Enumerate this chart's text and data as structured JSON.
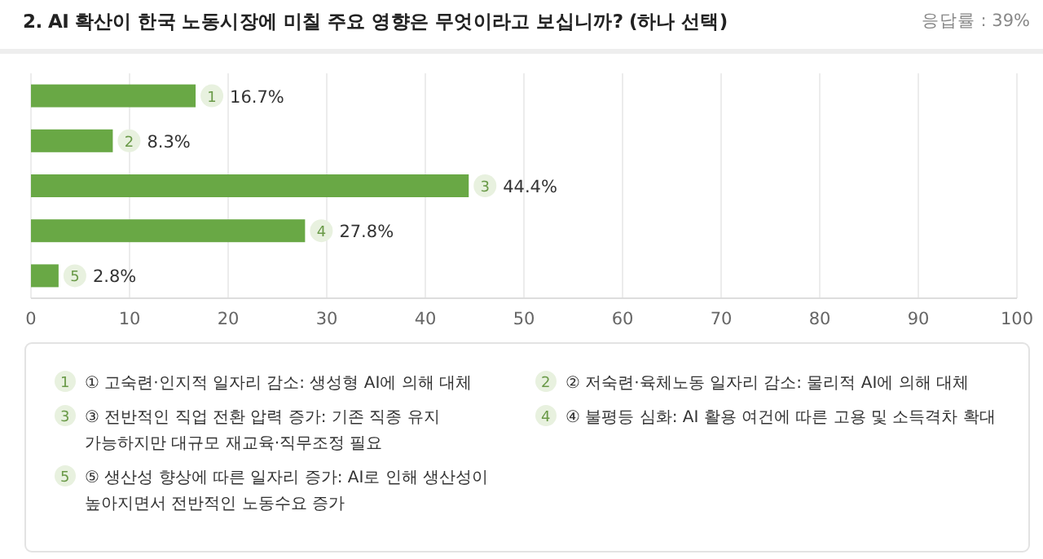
{
  "chart_data": {
    "type": "bar",
    "orientation": "horizontal",
    "title": "2. AI 확산이 한국 노동시장에 미칠 주요 영향은 무엇이라고 보십니까? (하나 선택)",
    "subtitle": "응답률 : 39%",
    "categories": [
      null,
      null,
      null,
      null,
      null
    ],
    "values": [
      16.7,
      8.3,
      44.4,
      27.8,
      2.8
    ],
    "value_labels": [
      "16.7%",
      "8.3%",
      "44.4%",
      "27.8%",
      "2.8%"
    ],
    "color": "#69a845",
    "xlim": [
      0,
      100
    ],
    "xticks": [
      0,
      10,
      20,
      30,
      40,
      50,
      60,
      70,
      80,
      90,
      100
    ],
    "grid": "x",
    "annotations": [
      "1 ① 고숙련·인지적 일자리 감소: 생성형 AI에 의해 대체",
      "2 ② 저숙련·육체노동 일자리 감소: 물리적 AI에 의해 대체",
      "3 ③ 전반적인 직업 전환 압력 증가: 기존 직종 유지 가능하지만 대규모 재교육·직무조정 필요",
      "4 ④ 불평등 심화: AI 활용 여건에 따른 고용 및 소득격차 확대",
      "5 ⑤ 생산성 향상에 따른 일자리 증가: AI로 인해 생산성이 높아지면서 전반적인 노동수요 증가",
      "1",
      "2",
      "3",
      "4",
      "5"
    ]
  }
}
